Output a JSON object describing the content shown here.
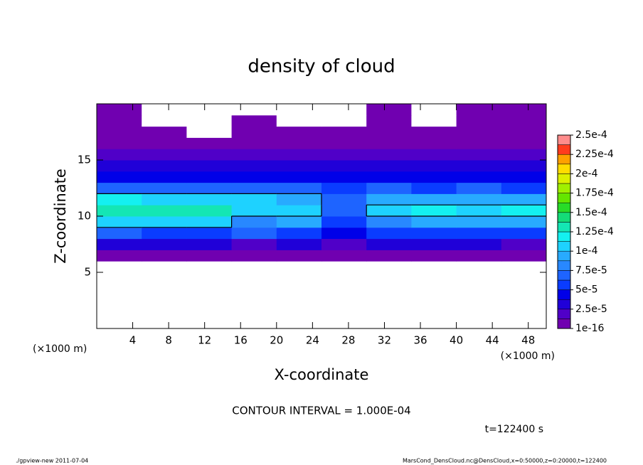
{
  "chart_data": {
    "type": "contour",
    "title": "density of cloud",
    "x_label": "X-coordinate",
    "y_label": "Z-coordinate",
    "x_unit_label": "(×1000 m)",
    "y_unit_label": "(×1000 m)",
    "xlim": [
      0,
      50
    ],
    "ylim": [
      0,
      20
    ],
    "xticks": [
      4,
      8,
      12,
      16,
      20,
      24,
      28,
      32,
      36,
      40,
      44,
      48
    ],
    "yticks": [
      5,
      10,
      15
    ],
    "contour_interval": {
      "value": 0.0001,
      "label": "CONTOUR INTERVAL = 1.000E-04"
    },
    "time_label": "t=122400 s",
    "footer_left": "./gpview-new  2011-07-04",
    "footer_right": "MarsCond_DensCloud.nc@DensCloud,x=0:50000,z=0:20000,t=122400",
    "colorbar": {
      "levels": [
        {
          "value": 1e-16,
          "label": "1e-16"
        },
        {
          "value": 2.5e-05,
          "label": "2.5e-5"
        },
        {
          "value": 5e-05,
          "label": "5e-5"
        },
        {
          "value": 7.5e-05,
          "label": "7.5e-5"
        },
        {
          "value": 0.0001,
          "label": "1e-4"
        },
        {
          "value": 0.000125,
          "label": "1.25e-4"
        },
        {
          "value": 0.00015,
          "label": "1.5e-4"
        },
        {
          "value": 0.000175,
          "label": "1.75e-4"
        },
        {
          "value": 0.0002,
          "label": "2e-4"
        },
        {
          "value": 0.000225,
          "label": "2.25e-4"
        },
        {
          "value": 0.00025,
          "label": "2.5e-4"
        }
      ],
      "colors": [
        "#7000b0",
        "#5000c8",
        "#2000d8",
        "#0000e8",
        "#0a3cff",
        "#1e64ff",
        "#2888ff",
        "#28aaff",
        "#1ed2ff",
        "#14f0f0",
        "#14e6b4",
        "#14dc78",
        "#28dc28",
        "#64e600",
        "#a0f000",
        "#dcf000",
        "#ffdc00",
        "#ffa000",
        "#ff3c1e",
        "#ff8c8c"
      ]
    },
    "grid": {
      "x": [
        2.5,
        7.5,
        12.5,
        17.5,
        22.5,
        27.5,
        32.5,
        37.5,
        42.5,
        47.5
      ],
      "z": [
        0.5,
        1.5,
        2.5,
        3.5,
        4.5,
        5.5,
        6.5,
        7.5,
        8.5,
        9.5,
        10.5,
        11.5,
        12.5,
        13.5,
        14.5,
        15.5,
        16.5,
        17.5,
        18.5,
        19.5
      ],
      "values": [
        [
          0,
          0,
          0,
          0,
          0,
          0,
          0,
          0,
          0,
          0
        ],
        [
          0,
          0,
          0,
          0,
          0,
          0,
          0,
          0,
          0,
          0
        ],
        [
          0,
          0,
          0,
          0,
          0,
          0,
          0,
          0,
          0,
          0
        ],
        [
          0,
          0,
          0,
          0,
          0,
          0,
          0,
          0,
          0,
          0
        ],
        [
          0,
          0,
          0,
          0,
          0,
          0,
          0,
          0,
          0,
          0
        ],
        [
          0,
          0,
          0,
          0,
          0,
          0,
          0,
          0,
          0,
          0
        ],
        [
          8e-06,
          8e-06,
          9e-06,
          8e-06,
          8e-06,
          8e-06,
          8e-06,
          8e-06,
          8e-06,
          1e-05
        ],
        [
          3e-05,
          3e-05,
          3e-05,
          2.5e-05,
          3e-05,
          2e-05,
          3e-05,
          3e-05,
          3e-05,
          2.5e-05
        ],
        [
          6.5e-05,
          6e-05,
          6e-05,
          6.5e-05,
          6e-05,
          4e-05,
          6e-05,
          6e-05,
          6e-05,
          5.5e-05
        ],
        [
          0.00011,
          0.00011,
          0.000105,
          8e-05,
          9e-05,
          6e-05,
          8.5e-05,
          9e-05,
          9e-05,
          9e-05
        ],
        [
          0.00013,
          0.000135,
          0.00013,
          0.00011,
          0.000105,
          7e-05,
          0.000105,
          0.000115,
          0.00011,
          0.000115
        ],
        [
          0.00012,
          0.00011,
          0.000105,
          0.000105,
          0.0001,
          7e-05,
          9e-05,
          9.5e-05,
          9e-05,
          9.5e-05
        ],
        [
          7e-05,
          6.5e-05,
          6.5e-05,
          7e-05,
          6.5e-05,
          6e-05,
          6.5e-05,
          6e-05,
          6.5e-05,
          6e-05
        ],
        [
          5e-05,
          5e-05,
          4.5e-05,
          5e-05,
          5e-05,
          4.5e-05,
          5e-05,
          4.5e-05,
          5e-05,
          5e-05
        ],
        [
          3.5e-05,
          3.5e-05,
          3e-05,
          3.5e-05,
          3.5e-05,
          3.5e-05,
          3e-05,
          3.5e-05,
          3.5e-05,
          3e-05
        ],
        [
          2e-05,
          2e-05,
          2e-05,
          1.8e-05,
          2e-05,
          2e-05,
          2e-05,
          1.8e-05,
          2e-05,
          2e-05
        ],
        [
          1e-05,
          1e-05,
          1.2e-05,
          1e-05,
          1e-05,
          1e-05,
          1.2e-05,
          1e-05,
          1e-05,
          1e-05
        ],
        [
          6e-06,
          6e-06,
          0,
          6e-06,
          6e-06,
          6e-06,
          6e-06,
          6e-06,
          6e-06,
          6e-06
        ],
        [
          5e-06,
          0,
          0,
          5e-06,
          0,
          0,
          5e-06,
          0,
          5e-06,
          5e-06
        ],
        [
          4e-06,
          0,
          0,
          0,
          0,
          0,
          4e-06,
          0,
          4e-06,
          4e-06
        ]
      ]
    }
  }
}
